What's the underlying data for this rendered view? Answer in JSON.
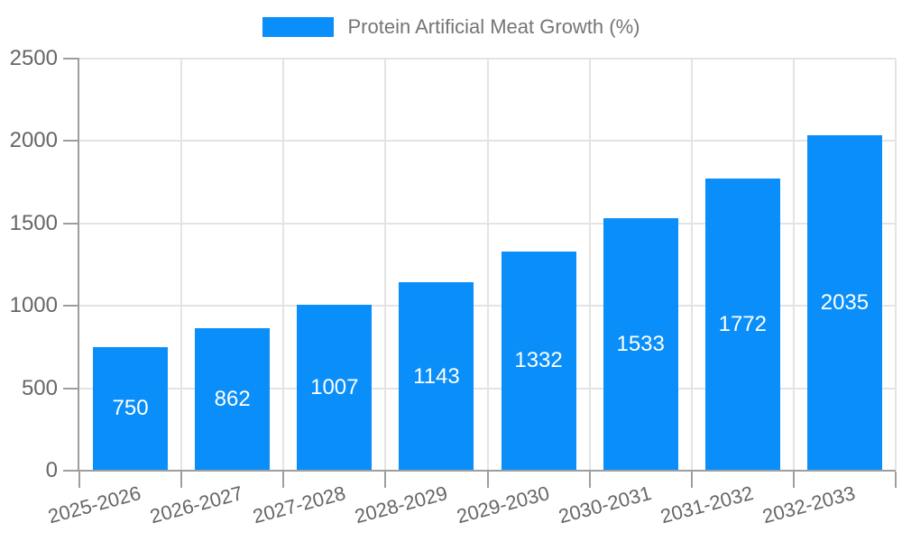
{
  "legend": {
    "label": "Protein Artificial Meat Growth (%)"
  },
  "chart_data": {
    "type": "bar",
    "title": "Protein Artificial Meat Growth (%)",
    "categories": [
      "2025-2026",
      "2026-2027",
      "2027-2028",
      "2028-2029",
      "2029-2030",
      "2030-2031",
      "2031-2032",
      "2032-2033"
    ],
    "values": [
      750,
      862,
      1007,
      1143,
      1332,
      1533,
      1772,
      2035
    ],
    "xlabel": "",
    "ylabel": "",
    "ylim": [
      0,
      2500
    ],
    "yticks": [
      0,
      500,
      1000,
      1500,
      2000,
      2500
    ],
    "grid": true,
    "legend_position": "top-center",
    "value_labels": "inside-center",
    "colors": {
      "bar": "#0a8ef9",
      "value_label": "#ffffff",
      "axis": "#9e9e9e",
      "grid": "#e4e4e4",
      "tick_label": "#666666",
      "legend_text": "#757575",
      "background": "#ffffff"
    }
  }
}
